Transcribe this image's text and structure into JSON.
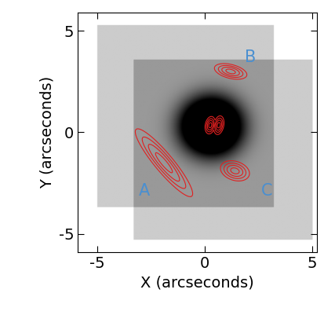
{
  "chart_data": {
    "type": "image",
    "x_label": "X (arcseconds)",
    "y_label": "Y (arcseconds)",
    "xlim": [
      -5.9,
      5.2
    ],
    "ylim": [
      -5.9,
      5.9
    ],
    "xticks": [
      -5,
      0,
      5
    ],
    "yticks": [
      -5,
      0,
      5
    ],
    "frames": [
      {
        "x0": -5.0,
        "x1": 3.2,
        "y0": -3.7,
        "y1": 5.3
      },
      {
        "x0": -3.3,
        "x1": 5.0,
        "y0": -5.3,
        "y1": 3.6
      }
    ],
    "galaxy": {
      "x": 0.3,
      "y": 0.3,
      "size": 1.5
    },
    "sources": [
      {
        "x": -1.9,
        "y": -1.5,
        "size_major": 1.35,
        "size_minor": 0.28,
        "angle": -52
      },
      {
        "x": 1.2,
        "y": 3.0,
        "size_major": 0.5,
        "size_minor": 0.22,
        "angle": -15
      },
      {
        "x": 1.4,
        "y": -1.9,
        "size_major": 0.45,
        "size_minor": 0.3,
        "angle": -20
      },
      {
        "x": 0.25,
        "y": 0.35,
        "size_major": 0.28,
        "size_minor": 0.15,
        "angle": 80
      },
      {
        "x": 0.65,
        "y": 0.35,
        "size_major": 0.3,
        "size_minor": 0.15,
        "angle": 80
      }
    ],
    "color": "#e02020",
    "annotations": [
      {
        "text": "A",
        "x": -2.8,
        "y": -2.9,
        "color": "#4a8fd0"
      },
      {
        "text": "B",
        "x": 2.1,
        "y": 3.7,
        "color": "#4a8fd0"
      },
      {
        "text": "C",
        "x": 2.9,
        "y": -2.9,
        "color": "#4a8fd0"
      }
    ]
  }
}
